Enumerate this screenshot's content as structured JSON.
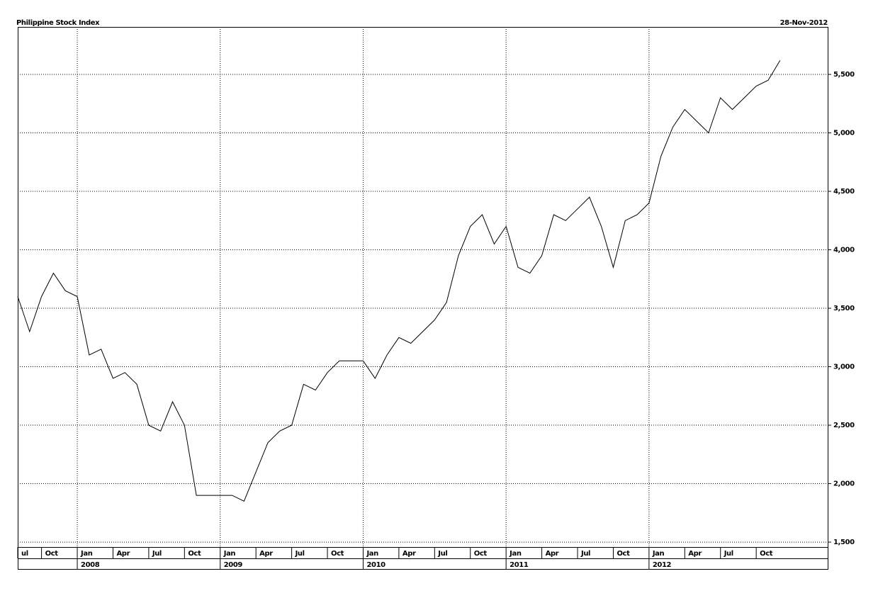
{
  "chart_data": {
    "type": "line",
    "title": "Philippine Stock Index",
    "date": "28-Nov-2012",
    "x": [
      "2007-08",
      "2007-09",
      "2007-10",
      "2007-11",
      "2007-12",
      "2008-01",
      "2008-02",
      "2008-03",
      "2008-04",
      "2008-05",
      "2008-06",
      "2008-07",
      "2008-08",
      "2008-09",
      "2008-10",
      "2008-11",
      "2008-12",
      "2009-01",
      "2009-02",
      "2009-03",
      "2009-04",
      "2009-05",
      "2009-06",
      "2009-07",
      "2009-08",
      "2009-09",
      "2009-10",
      "2009-11",
      "2009-12",
      "2010-01",
      "2010-02",
      "2010-03",
      "2010-04",
      "2010-05",
      "2010-06",
      "2010-07",
      "2010-08",
      "2010-09",
      "2010-10",
      "2010-11",
      "2010-12",
      "2011-01",
      "2011-02",
      "2011-03",
      "2011-04",
      "2011-05",
      "2011-06",
      "2011-07",
      "2011-08",
      "2011-09",
      "2011-10",
      "2011-11",
      "2011-12",
      "2012-01",
      "2012-02",
      "2012-03",
      "2012-04",
      "2012-05",
      "2012-06",
      "2012-07",
      "2012-08",
      "2012-09",
      "2012-10",
      "2012-11",
      "2012-12"
    ],
    "values": [
      3600,
      3300,
      3600,
      3800,
      3650,
      3600,
      3100,
      3150,
      2900,
      2950,
      2850,
      2500,
      2450,
      2700,
      2500,
      1900,
      1900,
      1900,
      1900,
      1850,
      2100,
      2350,
      2450,
      2500,
      2850,
      2800,
      2950,
      3050,
      3050,
      3050,
      2900,
      3100,
      3250,
      3200,
      3300,
      3400,
      3550,
      3950,
      4200,
      4300,
      4050,
      4200,
      3850,
      3800,
      3950,
      4300,
      4250,
      4350,
      4450,
      4200,
      3850,
      4250,
      4300,
      4400,
      4800,
      5050,
      5200,
      5100,
      5000,
      5300,
      5200,
      5300,
      5400,
      5450,
      5620
    ],
    "color": "#000000",
    "xlim": [
      "2007-08",
      "2013-04"
    ],
    "xticks": [
      {
        "value": "2007-07",
        "label": "ul"
      },
      {
        "value": "2007-10",
        "label": "Oct"
      },
      {
        "value": "2008-01",
        "label": "Jan"
      },
      {
        "value": "2008-04",
        "label": "Apr"
      },
      {
        "value": "2008-07",
        "label": "Jul"
      },
      {
        "value": "2008-10",
        "label": "Oct"
      },
      {
        "value": "2009-01",
        "label": "Jan"
      },
      {
        "value": "2009-04",
        "label": "Apr"
      },
      {
        "value": "2009-07",
        "label": "Jul"
      },
      {
        "value": "2009-10",
        "label": "Oct"
      },
      {
        "value": "2010-01",
        "label": "Jan"
      },
      {
        "value": "2010-04",
        "label": "Apr"
      },
      {
        "value": "2010-07",
        "label": "Jul"
      },
      {
        "value": "2010-10",
        "label": "Oct"
      },
      {
        "value": "2011-01",
        "label": "Jan"
      },
      {
        "value": "2011-04",
        "label": "Apr"
      },
      {
        "value": "2011-07",
        "label": "Jul"
      },
      {
        "value": "2011-10",
        "label": "Oct"
      },
      {
        "value": "2012-01",
        "label": "Jan"
      },
      {
        "value": "2012-04",
        "label": "Apr"
      },
      {
        "value": "2012-07",
        "label": "Jul"
      },
      {
        "value": "2012-10",
        "label": "Oct"
      }
    ],
    "year_ticks": [
      {
        "value": "2008-01",
        "label": "2008"
      },
      {
        "value": "2009-01",
        "label": "2009"
      },
      {
        "value": "2010-01",
        "label": "2010"
      },
      {
        "value": "2011-01",
        "label": "2011"
      },
      {
        "value": "2012-01",
        "label": "2012"
      }
    ],
    "ylim": [
      1458,
      5906
    ],
    "yticks": [
      {
        "value": 1500,
        "label": "1,500"
      },
      {
        "value": 2000,
        "label": "2,000"
      },
      {
        "value": 2500,
        "label": "2,500"
      },
      {
        "value": 3000,
        "label": "3,000"
      },
      {
        "value": 3500,
        "label": "3,500"
      },
      {
        "value": 4000,
        "label": "4,000"
      },
      {
        "value": 4500,
        "label": "4,500"
      },
      {
        "value": 5000,
        "label": "5,000"
      },
      {
        "value": 5500,
        "label": "5,500"
      }
    ],
    "grid": true
  }
}
